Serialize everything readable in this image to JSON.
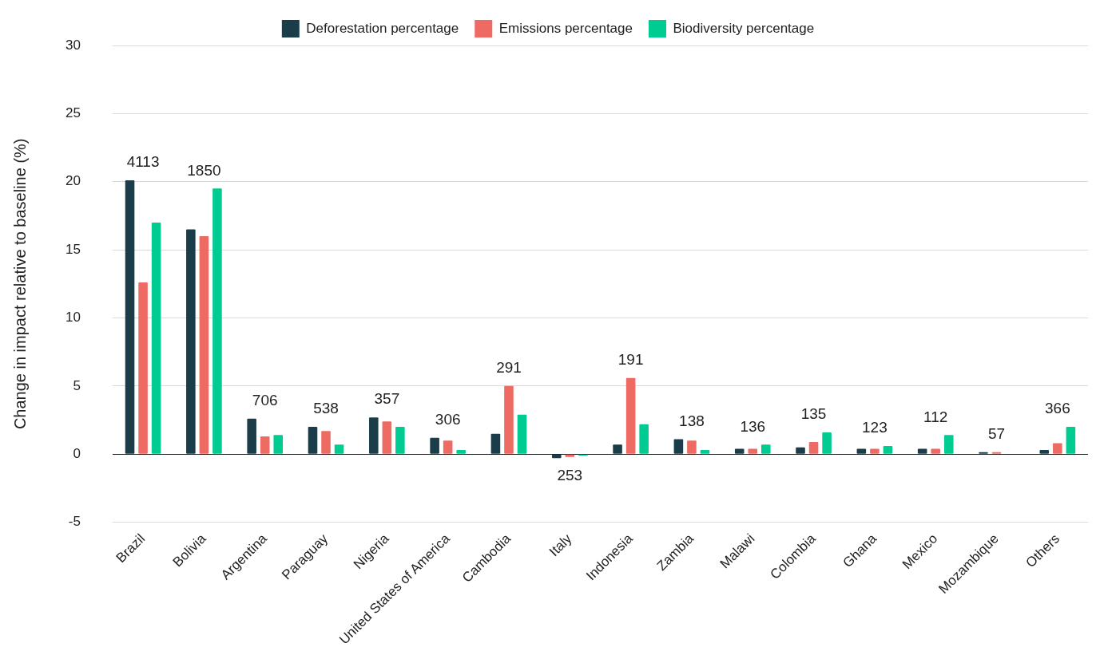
{
  "chart_data": {
    "type": "bar",
    "ylabel": "Change in impact relative to baseline (%)",
    "categories": [
      "Brazil",
      "Bolivia",
      "Argentina",
      "Paraguay",
      "Nigeria",
      "United States of America",
      "Cambodia",
      "Italy",
      "Indonesia",
      "Zambia",
      "Malawi",
      "Colombia",
      "Ghana",
      "Mexico",
      "Mozambique",
      "Others"
    ],
    "series": [
      {
        "name": "Deforestation percentage",
        "color": "#1b3d4a",
        "values": [
          20.1,
          16.5,
          2.6,
          2.0,
          2.7,
          1.2,
          1.5,
          -0.3,
          0.7,
          1.1,
          0.4,
          0.5,
          0.4,
          0.4,
          0.15,
          0.3
        ]
      },
      {
        "name": "Emissions percentage",
        "color": "#ee6b64",
        "values": [
          12.6,
          16.0,
          1.3,
          1.7,
          2.4,
          1.0,
          5.0,
          -0.2,
          5.6,
          1.0,
          0.4,
          0.9,
          0.4,
          0.4,
          0.15,
          0.8
        ]
      },
      {
        "name": "Biodiversity percentage",
        "color": "#00cc92",
        "values": [
          17.0,
          19.5,
          1.4,
          0.7,
          2.0,
          0.3,
          2.9,
          -0.1,
          2.2,
          0.3,
          0.7,
          1.6,
          0.6,
          1.4,
          0,
          2.0
        ]
      }
    ],
    "ylim": [
      -5,
      30
    ],
    "yticks": [
      -5,
      0,
      5,
      10,
      15,
      20,
      25,
      30
    ],
    "grid": "y",
    "legend": "top",
    "annotations": [
      "4113",
      "1850",
      "706",
      "538",
      "357",
      "306",
      "291",
      "253",
      "191",
      "138",
      "136",
      "135",
      "123",
      "112",
      "57",
      "366"
    ]
  }
}
